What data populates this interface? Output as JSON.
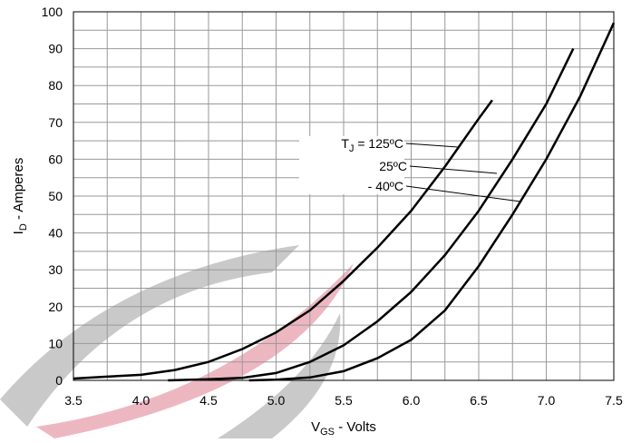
{
  "chart_data": {
    "type": "line",
    "xlabel_main": "V",
    "xlabel_sub": "GS",
    "xlabel_rest": " - Volts",
    "ylabel_main": "I",
    "ylabel_sub": "D",
    "ylabel_rest": " - Amperes",
    "xlim": [
      3.5,
      7.5
    ],
    "ylim": [
      0,
      100
    ],
    "xticks": [
      {
        "value": 3.5,
        "label": "3.5"
      },
      {
        "value": 4,
        "label": "4.0"
      },
      {
        "value": 4.5,
        "label": "4.5"
      },
      {
        "value": 5,
        "label": "5.0"
      },
      {
        "value": 5.5,
        "label": "5.5"
      },
      {
        "value": 6,
        "label": "6.0"
      },
      {
        "value": 6.5,
        "label": "6.5"
      },
      {
        "value": 7,
        "label": "7.0"
      },
      {
        "value": 7.5,
        "label": "7.5"
      }
    ],
    "yticks": [
      0,
      10,
      20,
      30,
      40,
      50,
      60,
      70,
      80,
      90,
      100
    ],
    "grid": true,
    "annotations": {
      "t_main": "T",
      "t_sub": "J",
      "t_rest": " = 125ºC",
      "mid": "25ºC",
      "low": "- 40ºC"
    },
    "series": [
      {
        "name": "125ºC",
        "color": "#000000",
        "x": [
          3.5,
          3.75,
          4.0,
          4.25,
          4.5,
          4.75,
          5.0,
          5.25,
          5.5,
          5.75,
          6.0,
          6.25,
          6.5,
          6.6
        ],
        "values": [
          0.5,
          1,
          1.5,
          2.8,
          5,
          8.5,
          13,
          19,
          27,
          36,
          46,
          58,
          71,
          76
        ]
      },
      {
        "name": "25ºC",
        "color": "#000000",
        "x": [
          4.2,
          4.5,
          4.75,
          5.0,
          5.25,
          5.5,
          5.75,
          6.0,
          6.25,
          6.5,
          6.75,
          7.0,
          7.2
        ],
        "values": [
          0,
          0.3,
          0.7,
          2,
          5,
          9.5,
          16,
          24,
          34,
          46,
          60,
          75,
          90
        ]
      },
      {
        "name": "-40ºC",
        "color": "#000000",
        "x": [
          4.8,
          5.0,
          5.25,
          5.5,
          5.75,
          6.0,
          6.25,
          6.5,
          6.75,
          7.0,
          7.25,
          7.5
        ],
        "values": [
          0,
          0.2,
          0.8,
          2.5,
          6,
          11,
          19,
          31,
          45,
          60,
          77,
          97
        ]
      }
    ]
  }
}
